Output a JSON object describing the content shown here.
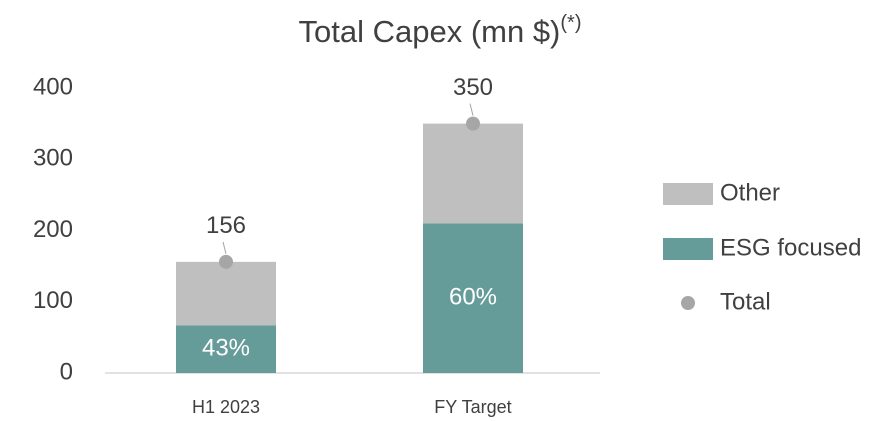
{
  "chart_data": {
    "type": "bar",
    "stacked": true,
    "title": "Total Capex (mn $)",
    "title_superscript": "(*)",
    "categories": [
      "H1 2023",
      "FY Target"
    ],
    "series": [
      {
        "name": "ESG focused",
        "color": "#659b98",
        "values": [
          67,
          210
        ]
      },
      {
        "name": "Other",
        "color": "#bfbfbf",
        "values": [
          89,
          140
        ]
      },
      {
        "name": "Total",
        "type": "scatter",
        "color": "#a6a6a6",
        "values": [
          156,
          350
        ]
      }
    ],
    "share_labels": [
      "43%",
      "60%"
    ],
    "ylim": [
      0,
      400
    ],
    "yticks": [
      0,
      100,
      200,
      300,
      400
    ],
    "grid": false,
    "legend": "right"
  }
}
